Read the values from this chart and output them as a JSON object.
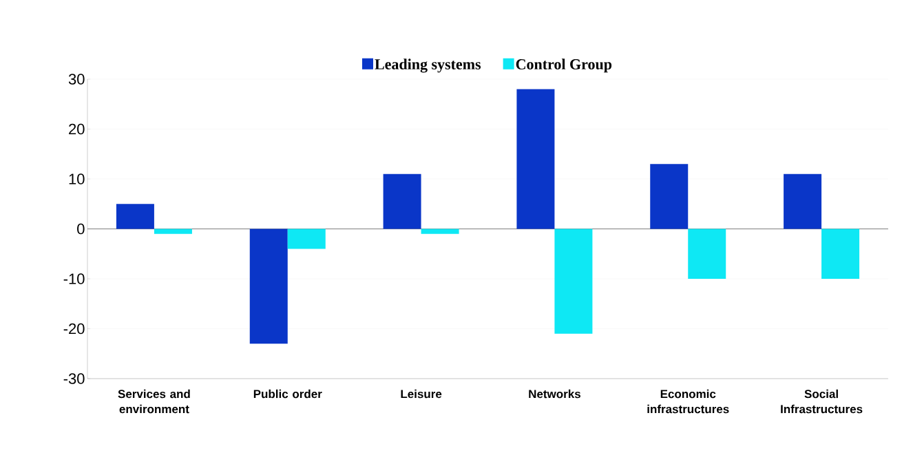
{
  "chart_data": {
    "type": "bar",
    "categories": [
      "Services and environment",
      "Public order",
      "Leisure",
      "Networks",
      "Economic infrastructures",
      "Social Infrastructures"
    ],
    "series": [
      {
        "name": "Leading systems",
        "color": "#0a36c8",
        "values": [
          5,
          -23,
          11,
          28,
          13,
          11
        ]
      },
      {
        "name": "Control Group",
        "color": "#0ee8f4",
        "values": [
          -1,
          -4,
          -1,
          -21,
          -10,
          -10
        ]
      }
    ],
    "ylim": [
      -30,
      30
    ],
    "yticks": [
      -30,
      -20,
      -10,
      0,
      10,
      20,
      30
    ],
    "grid": "y",
    "legend": "top"
  }
}
